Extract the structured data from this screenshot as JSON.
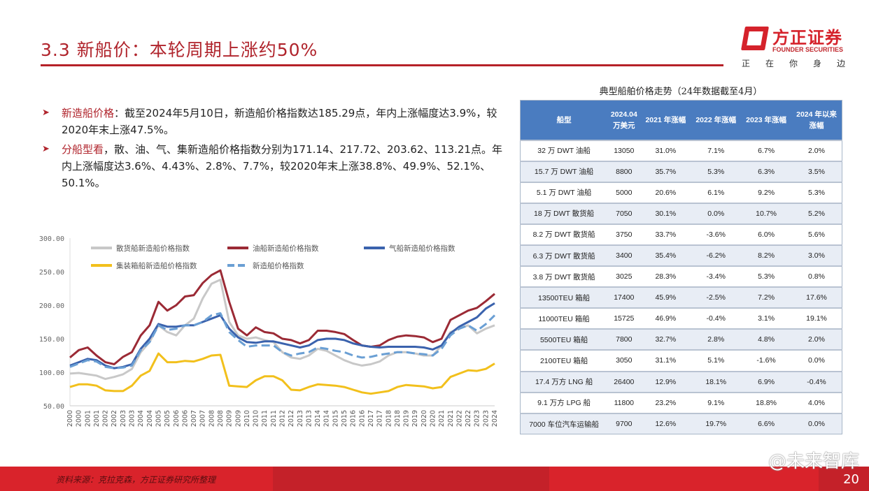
{
  "header": {
    "title": "3.3 新船价：本轮周期上涨约50%",
    "logo_cn": "方正证券",
    "logo_en": "FOUNDER SECURITIES",
    "slogan": "正在你身边",
    "brand_color": "#d5222b"
  },
  "bullets": [
    {
      "keyword": "新造船价格",
      "text": "：截至2024年5月10日，新造船价格指数达185.29点，年内上涨幅度达3.9%，较2020年末上涨47.5%。"
    },
    {
      "keyword": "分船型看",
      "text": "，散、油、气、集新造船价格指数分别为171.14、217.72、203.62、113.21点。年内上涨幅度达3.6%、4.43%、2.8%、7.7%，较2020年末上涨38.8%、49.9%、52.1%、50.1%。"
    }
  ],
  "chart_data": {
    "type": "line",
    "title": "",
    "xlabel": "",
    "ylabel": "",
    "ylim": [
      50,
      300
    ],
    "yticks": [
      "300.00",
      "250.00",
      "200.00",
      "150.00",
      "100.00",
      "50.00"
    ],
    "x": [
      "2000",
      "2000",
      "2001",
      "2001",
      "2002",
      "2002",
      "2003",
      "2003",
      "2004",
      "2004",
      "2005",
      "2005",
      "2006",
      "2006",
      "2007",
      "2007",
      "2008",
      "2008",
      "2009",
      "2009",
      "2010",
      "2010",
      "2011",
      "2011",
      "2012",
      "2012",
      "2013",
      "2013",
      "2014",
      "2014",
      "2015",
      "2015",
      "2016",
      "2016",
      "2017",
      "2017",
      "2018",
      "2018",
      "2019",
      "2019",
      "2020",
      "2020",
      "2021",
      "2021",
      "2022",
      "2022",
      "2023",
      "2023",
      "2024"
    ],
    "grid": false,
    "legend": "top",
    "series": [
      {
        "name": "散货船新造船价格指数",
        "color": "#c8c8c8",
        "dash": false,
        "values": [
          98,
          99,
          97,
          95,
          90,
          93,
          97,
          105,
          130,
          145,
          170,
          160,
          155,
          170,
          180,
          210,
          232,
          238,
          175,
          155,
          150,
          152,
          148,
          145,
          130,
          122,
          120,
          125,
          135,
          132,
          125,
          118,
          113,
          110,
          112,
          116,
          125,
          130,
          130,
          128,
          125,
          125,
          140,
          160,
          165,
          170,
          158,
          165,
          170
        ]
      },
      {
        "name": "油船新造船价格指数",
        "color": "#9b2a35",
        "dash": false,
        "values": [
          122,
          133,
          137,
          125,
          115,
          112,
          123,
          130,
          155,
          170,
          205,
          192,
          200,
          213,
          215,
          233,
          245,
          252,
          205,
          165,
          155,
          167,
          160,
          158,
          150,
          148,
          143,
          148,
          162,
          162,
          160,
          157,
          148,
          140,
          138,
          140,
          148,
          153,
          155,
          154,
          152,
          145,
          150,
          178,
          185,
          192,
          196,
          206,
          217
        ]
      },
      {
        "name": "气船新造船价格指数",
        "color": "#3a62ad",
        "dash": false,
        "values": [
          110,
          115,
          120,
          118,
          110,
          106,
          108,
          112,
          135,
          150,
          172,
          168,
          168,
          170,
          170,
          175,
          180,
          185,
          165,
          152,
          145,
          144,
          146,
          146,
          143,
          140,
          137,
          140,
          148,
          150,
          150,
          148,
          143,
          140,
          138,
          137,
          138,
          138,
          138,
          138,
          137,
          134,
          140,
          158,
          168,
          175,
          182,
          195,
          203
        ]
      },
      {
        "name": "集装箱船新造船价格指数",
        "color": "#f2c01c",
        "dash": false,
        "values": [
          78,
          82,
          82,
          80,
          73,
          72,
          72,
          80,
          95,
          102,
          128,
          115,
          115,
          117,
          116,
          120,
          125,
          126,
          80,
          79,
          78,
          88,
          94,
          94,
          88,
          74,
          73,
          78,
          82,
          81,
          80,
          78,
          74,
          70,
          68,
          70,
          72,
          78,
          81,
          80,
          79,
          76,
          78,
          93,
          98,
          103,
          102,
          105,
          113
        ]
      },
      {
        "name": "新造船价格指数",
        "color": "#6a9fd4",
        "dash": true,
        "values": [
          108,
          113,
          118,
          116,
          108,
          106,
          107,
          110,
          133,
          145,
          170,
          163,
          165,
          170,
          170,
          175,
          185,
          188,
          160,
          148,
          138,
          140,
          140,
          140,
          130,
          125,
          128,
          130,
          137,
          135,
          132,
          130,
          125,
          122,
          123,
          126,
          128,
          130,
          130,
          128,
          127,
          125,
          135,
          155,
          165,
          170,
          162,
          172,
          185
        ]
      }
    ]
  },
  "table": {
    "title": "典型船舶价格走势（24年数据截至4月）",
    "header_color": "#4a7cc0",
    "columns": [
      "船型",
      "2024.04\n万美元",
      "2021 年涨幅",
      "2022 年涨幅",
      "2023 年涨幅",
      "2024 年以来\n涨幅"
    ],
    "rows": [
      [
        "32 万 DWT 油船",
        "13050",
        "31.0%",
        "7.1%",
        "6.7%",
        "2.0%"
      ],
      [
        "15.7 万 DWT 油船",
        "8800",
        "35.7%",
        "5.3%",
        "6.3%",
        "3.5%"
      ],
      [
        "5.1 万 DWT 油船",
        "5000",
        "20.6%",
        "6.1%",
        "9.2%",
        "5.3%"
      ],
      [
        "18 万 DWT 散货船",
        "7050",
        "30.1%",
        "0.0%",
        "10.7%",
        "5.2%"
      ],
      [
        "8.2 万 DWT 散货船",
        "3750",
        "33.7%",
        "-3.6%",
        "6.0%",
        "5.6%"
      ],
      [
        "6.3 万 DWT 散货船",
        "3400",
        "35.4%",
        "-6.2%",
        "8.2%",
        "3.0%"
      ],
      [
        "3.8 万 DWT 散货船",
        "3025",
        "28.3%",
        "-3.4%",
        "5.3%",
        "0.8%"
      ],
      [
        "13500TEU 箱船",
        "17400",
        "45.9%",
        "-2.5%",
        "7.2%",
        "17.6%"
      ],
      [
        "11000TEU 箱船",
        "15725",
        "46.9%",
        "-0.4%",
        "3.1%",
        "19.1%"
      ],
      [
        "5500TEU 箱船",
        "7800",
        "32.7%",
        "2.8%",
        "4.8%",
        "2.0%"
      ],
      [
        "2100TEU 箱船",
        "3050",
        "31.1%",
        "5.1%",
        "-1.6%",
        "0.0%"
      ],
      [
        "17.4 万方 LNG 船",
        "26400",
        "12.9%",
        "18.1%",
        "6.9%",
        "-0.4%"
      ],
      [
        "9.1 万方 LPG 船",
        "11800",
        "23.2%",
        "9.1%",
        "18.8%",
        "4.0%"
      ],
      [
        "7000 车位汽车运输船",
        "9700",
        "12.6%",
        "19.7%",
        "6.6%",
        "0.0%"
      ]
    ]
  },
  "footer": {
    "source": "资料来源：克拉克森，方正证券研究所整理",
    "page": "20",
    "watermark": "@未来智库"
  }
}
